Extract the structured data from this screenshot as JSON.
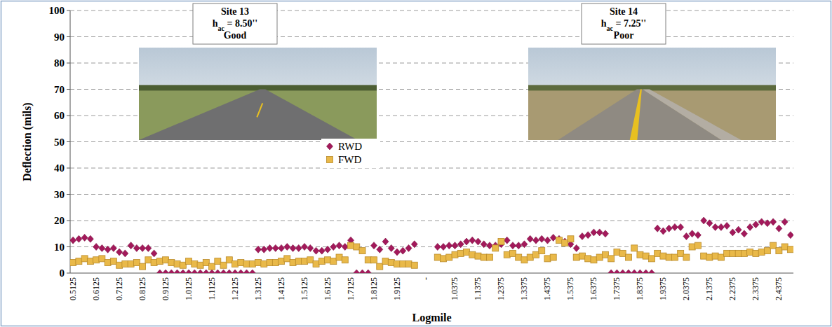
{
  "chart_data": {
    "type": "scatter",
    "x_label": "Logmile",
    "y_label": "Deflection (mils)",
    "ylim": [
      0,
      100
    ],
    "yticks": [
      0,
      10,
      20,
      30,
      40,
      50,
      60,
      70,
      80,
      90,
      100
    ],
    "grid": true,
    "legend": "center",
    "annotations": [
      {
        "title": "Site 13",
        "var": "h",
        "sub": "ac",
        "value": " = 8.50''",
        "condition": "Good"
      },
      {
        "title": "Site 14",
        "var": "h",
        "sub": "ac",
        "value": " = 7.25''",
        "condition": "Poor"
      }
    ],
    "categories": [
      "0.5125",
      null,
      null,
      null,
      "0.6125",
      null,
      null,
      null,
      "0.7125",
      null,
      null,
      null,
      "0.8125",
      null,
      null,
      null,
      "0.9125",
      null,
      null,
      null,
      "1.0125",
      null,
      null,
      null,
      "1.1125",
      null,
      null,
      null,
      "1.2125",
      null,
      null,
      null,
      "1.3125",
      null,
      null,
      null,
      "1.4125",
      null,
      null,
      null,
      "1.5125",
      null,
      null,
      null,
      "1.6125",
      null,
      null,
      null,
      "1.7125",
      null,
      null,
      null,
      "1.8125",
      null,
      null,
      null,
      "1.9125",
      null,
      null,
      null,
      null,
      "-",
      null,
      null,
      null,
      null,
      "1.0375",
      null,
      null,
      null,
      "1.1375",
      null,
      null,
      null,
      "1.2375",
      null,
      null,
      null,
      "1.3375",
      null,
      null,
      null,
      "1.4375",
      null,
      null,
      null,
      "1.5375",
      null,
      null,
      null,
      "1.6375",
      null,
      null,
      null,
      "1.7375",
      null,
      null,
      null,
      "1.8375",
      null,
      null,
      null,
      "1.9375",
      null,
      null,
      null,
      "2.0375",
      null,
      null,
      null,
      "2.1375",
      null,
      null,
      null,
      "2.2375",
      null,
      null,
      null,
      "2.3375",
      null,
      null,
      null,
      "2.4375",
      null,
      null
    ],
    "series": [
      {
        "name": "RWD",
        "color": "#a3195b",
        "marker": "diamond",
        "values": [
          12.5,
          13,
          13.5,
          13,
          10,
          9.5,
          9,
          9.5,
          8,
          7.5,
          10.5,
          9.5,
          9.5,
          9.5,
          7.5,
          0,
          0,
          0,
          0,
          0,
          0,
          0,
          0,
          0,
          0,
          0,
          0,
          0,
          0,
          0,
          0,
          0,
          9,
          9,
          9.5,
          9.5,
          9.5,
          10,
          9.5,
          9.5,
          10,
          9.5,
          8.5,
          8.5,
          9,
          10,
          10.5,
          10,
          12.5,
          0,
          0,
          0,
          10.5,
          9,
          12,
          9.5,
          8,
          8.5,
          9.5,
          11,
          null,
          null,
          null,
          10,
          10,
          10.5,
          10.5,
          11,
          12,
          12.5,
          12,
          11,
          10.5,
          10.5,
          11,
          12.5,
          10.5,
          10.5,
          11,
          13,
          12.5,
          13,
          12.5,
          13.5,
          13,
          12,
          11,
          9.5,
          14,
          14.5,
          15.5,
          15.5,
          15,
          0,
          0,
          0,
          0,
          0,
          0,
          0,
          0,
          17,
          16,
          17,
          17.5,
          17.5,
          14,
          15,
          14.5,
          20,
          19,
          17.5,
          17.5,
          18,
          15.5,
          16.5,
          15,
          17.5,
          18.5,
          19.5,
          19,
          19.5,
          17,
          19.5,
          14.5
        ]
      },
      {
        "name": "FWD",
        "color": "#e9b949",
        "marker": "square",
        "values": [
          4,
          4.5,
          5.5,
          4.5,
          5,
          5.5,
          4,
          4.5,
          3,
          3.5,
          3.5,
          4,
          2.5,
          5,
          4,
          4.5,
          5,
          4,
          3.5,
          3,
          4.5,
          3.5,
          3,
          4,
          2.5,
          4.5,
          3,
          5,
          3.5,
          4,
          3.5,
          3.5,
          4,
          3.5,
          4,
          4,
          4.5,
          5.5,
          4,
          4.5,
          4.5,
          5,
          3.5,
          4.5,
          5,
          4.5,
          6,
          5,
          10.5,
          10,
          8.5,
          5,
          5,
          2.5,
          4.5,
          4,
          3.5,
          3.5,
          3.5,
          3,
          null,
          null,
          null,
          6,
          5.5,
          6,
          7,
          7.5,
          8,
          7,
          6.5,
          6,
          6,
          9.5,
          12,
          7,
          7.5,
          6,
          5,
          6,
          7,
          8.5,
          5.5,
          6,
          12.5,
          11.5,
          13,
          6,
          6.5,
          5.5,
          5,
          6,
          7,
          5.5,
          8,
          7.5,
          6,
          9.5,
          7,
          6.5,
          5.5,
          7.5,
          6.5,
          6,
          6,
          7.5,
          6,
          10,
          10.5,
          6.5,
          6,
          6.5,
          6,
          7.5,
          7.5,
          7.5,
          7.5,
          8,
          7.5,
          8,
          8.5,
          10.5,
          8.5,
          10,
          9
        ]
      }
    ]
  }
}
